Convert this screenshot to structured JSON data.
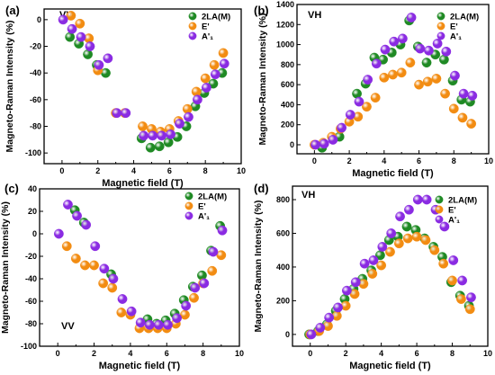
{
  "figure": {
    "colors": {
      "2LA(M)": "#1f8a24",
      "E'": "#f28c12",
      "A'1": "#8a2be2"
    }
  },
  "chart_data": [
    {
      "panel": "(a)",
      "mode_label": "VV",
      "type": "scatter",
      "xlabel": "Magnetic field (T)",
      "ylabel": "Magneto-Raman Intensity (%)",
      "xlim": [
        -1,
        10
      ],
      "ylim": [
        -108,
        8
      ],
      "xticks": [
        0,
        2,
        4,
        6,
        8,
        10
      ],
      "yticks": [
        0,
        -20,
        -40,
        -60,
        -80,
        -100
      ],
      "legend": "top-right",
      "series": [
        {
          "name": "2LA(M)",
          "x": [
            0.5,
            1,
            1.5,
            2,
            2.5,
            4.5,
            5,
            5.5,
            6,
            6.5,
            7,
            7.5,
            8,
            8.5,
            9
          ],
          "y": [
            -13,
            -18,
            -26,
            -34,
            -40,
            -89,
            -96,
            -95,
            -92,
            -88,
            -80,
            -65,
            -55,
            -48,
            -40
          ]
        },
        {
          "name": "E'",
          "x": [
            0.5,
            1,
            1.5,
            2,
            3,
            3.5,
            4.5,
            5,
            5.5,
            6,
            6.5,
            7,
            7.5,
            8,
            8.5,
            9
          ],
          "y": [
            3,
            -3,
            -14,
            -38,
            -70,
            -70,
            -80,
            -82,
            -84,
            -82,
            -76,
            -67,
            -54,
            -44,
            -34,
            -25
          ]
        },
        {
          "name": "A'₁",
          "x": [
            0,
            0.5,
            1,
            1.5,
            2,
            2.5,
            3,
            3.5,
            4.5,
            5,
            5.5,
            6,
            6.5,
            7,
            7.5,
            8,
            8.5,
            9
          ],
          "y": [
            0,
            -7,
            -13,
            -20,
            -34,
            -29,
            -70,
            -70,
            -87,
            -87,
            -87,
            -86,
            -78,
            -73,
            -60,
            -51,
            -41,
            -33
          ]
        }
      ]
    },
    {
      "panel": "(b)",
      "mode_label": "VH",
      "type": "scatter",
      "xlabel": "Magnetic field (T)",
      "ylabel": "Magneto-Raman Intensity (%)",
      "xlim": [
        -1,
        10
      ],
      "ylim": [
        -90,
        1400
      ],
      "xticks": [
        0,
        2,
        4,
        6,
        8,
        10
      ],
      "yticks": [
        0,
        200,
        400,
        600,
        800,
        1000,
        1200,
        1400
      ],
      "legend": "top-right",
      "series": [
        {
          "name": "2LA(M)",
          "x": [
            0.5,
            1.5,
            2.5,
            3,
            3.5,
            4,
            4.5,
            5,
            5.5,
            6,
            6.5,
            7,
            7.5,
            8,
            8.5,
            9
          ],
          "y": [
            -30,
            80,
            510,
            610,
            870,
            850,
            920,
            1000,
            1240,
            980,
            820,
            900,
            850,
            640,
            450,
            430
          ]
        },
        {
          "name": "E'",
          "x": [
            0,
            0.5,
            1,
            1.5,
            2,
            2.5,
            3,
            3.5,
            4,
            4.5,
            5,
            5.5,
            6,
            6.5,
            7,
            7.5,
            8,
            8.5,
            9
          ],
          "y": [
            0,
            20,
            80,
            160,
            230,
            280,
            380,
            470,
            670,
            700,
            720,
            820,
            600,
            630,
            660,
            510,
            360,
            270,
            210
          ]
        },
        {
          "name": "A'₁",
          "x": [
            0,
            0.5,
            1,
            1.5,
            2,
            2.5,
            3,
            3.5,
            4,
            4.5,
            5,
            5.5,
            6,
            6.5,
            7,
            7.5,
            8,
            8.5,
            9
          ],
          "y": [
            0,
            10,
            50,
            170,
            300,
            430,
            650,
            810,
            950,
            1030,
            1060,
            1270,
            960,
            940,
            1010,
            930,
            690,
            510,
            490
          ]
        }
      ]
    },
    {
      "panel": "(c)",
      "mode_label": "VV",
      "type": "scatter",
      "xlabel": "Magnetic field (T)",
      "ylabel": "Magneto-Raman Intensity (%)",
      "xlim": [
        -1,
        10
      ],
      "ylim": [
        -100,
        40
      ],
      "xticks": [
        0,
        2,
        4,
        6,
        8,
        10
      ],
      "yticks": [
        40,
        20,
        0,
        -20,
        -40,
        -60,
        -80,
        -100
      ],
      "legend": "top-right",
      "series": [
        {
          "name": "2LA(M)",
          "x": [
            1,
            1.5,
            3,
            5,
            5.5,
            6,
            6.5,
            7,
            7.5,
            8,
            8.5,
            9
          ],
          "y": [
            21,
            10,
            -36,
            -76,
            -80,
            -77,
            -71,
            -59,
            -47,
            -37,
            -15,
            7
          ]
        },
        {
          "name": "E'",
          "x": [
            0.5,
            1,
            1.5,
            2,
            2.5,
            3,
            3.5,
            4,
            4.5,
            5,
            5.5,
            6,
            6.5,
            7,
            7.5,
            8,
            8.5,
            9
          ],
          "y": [
            -11,
            -22,
            -28,
            -28,
            -44,
            -48,
            -70,
            -72,
            -84,
            -84,
            -84,
            -84,
            -80,
            -72,
            -57,
            -44,
            -33,
            -19
          ]
        },
        {
          "name": "A'₁",
          "x": [
            0,
            0.5,
            1,
            1.5,
            2,
            2.5,
            3,
            3.5,
            4,
            4.5,
            5,
            5.5,
            6,
            6.5,
            7,
            7.5,
            8,
            8.5,
            9
          ],
          "y": [
            0,
            26,
            16,
            8,
            -11,
            -31,
            -40,
            -58,
            -69,
            -79,
            -81,
            -81,
            -81,
            -75,
            -64,
            -48,
            -44,
            -16,
            3
          ]
        }
      ]
    },
    {
      "panel": "(d)",
      "mode_label": "VH",
      "type": "scatter",
      "xlabel": "Magnetic field (T)",
      "ylabel": "Magneto-Raman Intensity (%)",
      "xlim": [
        -1,
        10
      ],
      "ylim": [
        -70,
        880
      ],
      "xticks": [
        0,
        2,
        4,
        6,
        8,
        10
      ],
      "yticks": [
        0,
        200,
        400,
        600,
        800
      ],
      "legend": "top-right",
      "series": [
        {
          "name": "2LA(M)",
          "x": [
            0,
            0.5,
            1,
            1.5,
            2,
            2.5,
            3,
            3.5,
            4,
            4.5,
            5,
            5.5,
            6,
            6.5,
            7,
            7.5,
            8,
            8.5,
            9
          ],
          "y": [
            0,
            20,
            60,
            140,
            210,
            270,
            330,
            380,
            470,
            560,
            580,
            640,
            620,
            570,
            520,
            460,
            310,
            230,
            170
          ]
        },
        {
          "name": "E'",
          "x": [
            0,
            0.5,
            1,
            1.5,
            2,
            2.5,
            3,
            3.5,
            4,
            4.5,
            5,
            5.5,
            6,
            6.5,
            7,
            7.5,
            8,
            8.5,
            9
          ],
          "y": [
            0,
            20,
            50,
            110,
            170,
            240,
            300,
            360,
            410,
            490,
            540,
            570,
            580,
            560,
            500,
            420,
            320,
            210,
            150
          ]
        },
        {
          "name": "A'₁",
          "x": [
            0,
            0.5,
            1,
            1.5,
            2,
            2.5,
            3,
            3.5,
            4,
            4.5,
            5,
            5.5,
            6,
            6.5,
            7,
            7.5,
            8,
            8.5,
            9
          ],
          "y": [
            0,
            40,
            100,
            160,
            260,
            310,
            420,
            440,
            520,
            600,
            700,
            740,
            800,
            800,
            740,
            640,
            440,
            320,
            220
          ]
        }
      ]
    }
  ]
}
